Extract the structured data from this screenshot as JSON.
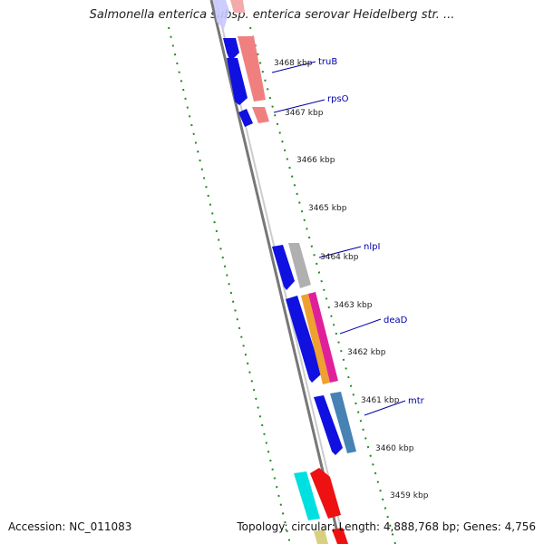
{
  "title": "Salmonella enterica subsp. enterica serovar Heidelberg str. ...",
  "footer": {
    "accession": "Accession: NC_011083",
    "summary": "Topology: circular; Length: 4,888,768 bp; Genes: 4,756"
  },
  "tick_labels": [
    "3468 kbp",
    "3467 kbp",
    "3466 kbp",
    "3465 kbp",
    "3464 kbp",
    "3463 kbp",
    "3462 kbp",
    "3461 kbp",
    "3460 kbp",
    "3459 kbp"
  ],
  "gene_labels": [
    "truB",
    "rpsO",
    "nlpI",
    "deaD",
    "mtr"
  ],
  "colors": {
    "backbone": "#777777",
    "tick_ring": "#228B22",
    "forward_cds": "#1010e0",
    "homolog_pink": "#f08080",
    "grey_feature": "#b0b0b0",
    "orange_feature": "#f0a030",
    "magenta_feature": "#e0209a",
    "steel_feature": "#4682b4",
    "cyan_feature": "#00e0e0",
    "red_feature": "#ee1111",
    "label_color": "#0000aa"
  }
}
